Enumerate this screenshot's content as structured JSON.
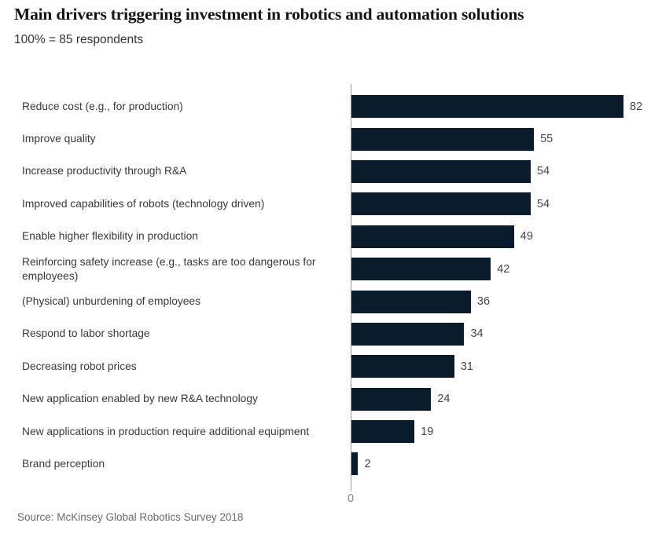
{
  "header": {
    "title": "Main drivers triggering investment in robotics and automation solutions",
    "subtitle": "100% = 85 respondents"
  },
  "chart_data": {
    "type": "bar",
    "orientation": "horizontal",
    "title": "Main drivers triggering investment in robotics and automation solutions",
    "subtitle": "100% = 85 respondents",
    "categories": [
      "Reduce cost (e.g., for production)",
      "Improve quality",
      "Increase productivity through R&A",
      "Improved capabilities of robots (technology driven)",
      "Enable higher flexibility in production",
      "Reinforcing safety increase (e.g., tasks are too dangerous for employees)",
      "(Physical) unburdening of employees",
      "Respond to labor shortage",
      "Decreasing robot prices",
      "New application enabled by new R&A technology",
      "New applications in production require additional equipment",
      "Brand perception"
    ],
    "values": [
      82,
      55,
      54,
      54,
      49,
      42,
      36,
      34,
      31,
      24,
      19,
      2
    ],
    "xlabel": "",
    "ylabel": "",
    "xlim": [
      0,
      86
    ],
    "axis_zero_label": "0",
    "grid": false,
    "legend_position": "none",
    "bar_color": "#0a1c2b",
    "value_label_color": "#454545",
    "axis_line_color": "#9a9a9a"
  },
  "footer": {
    "source": "Source: McKinsey Global Robotics Survey 2018"
  }
}
